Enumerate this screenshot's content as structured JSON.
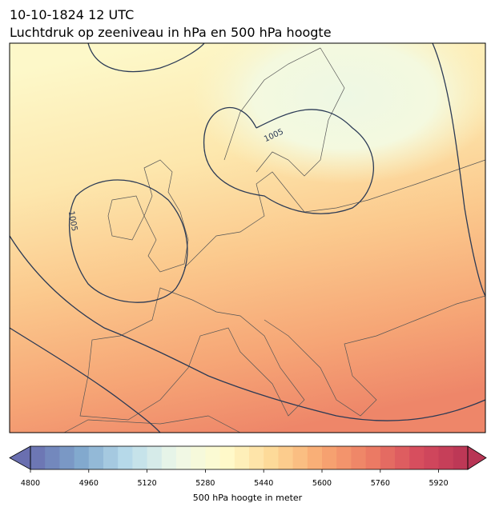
{
  "header": {
    "date": "10-10-1824 12 UTC",
    "title": "Luchtdruk op zeeniveau in hPa en 500 hPa hoogte"
  },
  "map": {
    "contour_labels": [
      "1005",
      "1005"
    ]
  },
  "colorbar": {
    "label": "500 hPa hoogte in meter",
    "range": [
      4800,
      6000
    ],
    "ticks": [
      4800,
      4960,
      5120,
      5280,
      5440,
      5600,
      5760,
      5920
    ]
  }
}
